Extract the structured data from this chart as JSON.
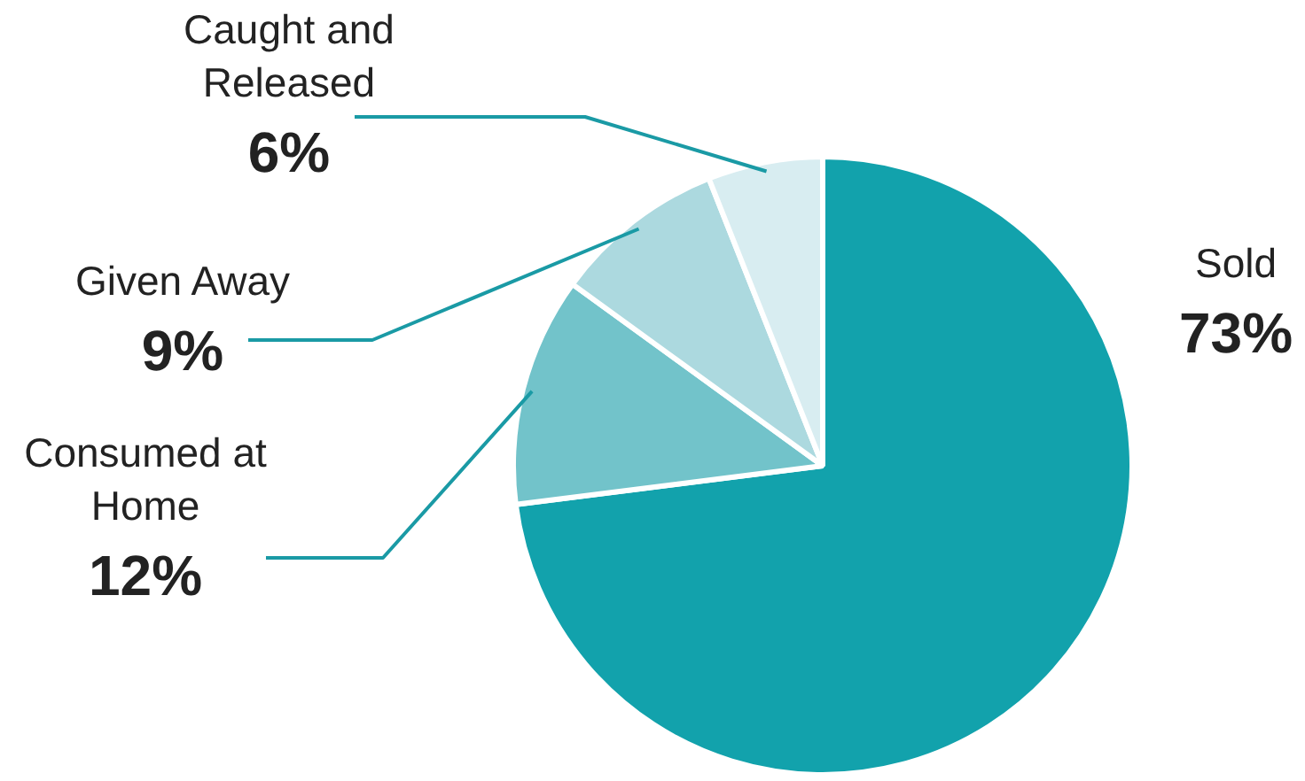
{
  "chart_data": {
    "type": "pie",
    "categories": [
      "Sold",
      "Consumed at Home",
      "Given Away",
      "Caught and Released"
    ],
    "values": [
      73,
      12,
      9,
      6
    ],
    "value_labels": [
      "73%",
      "12%",
      "9%",
      "6%"
    ],
    "colors": [
      "#12a2ac",
      "#72c3ca",
      "#acd9df",
      "#d8edf1"
    ],
    "legend": false
  }
}
